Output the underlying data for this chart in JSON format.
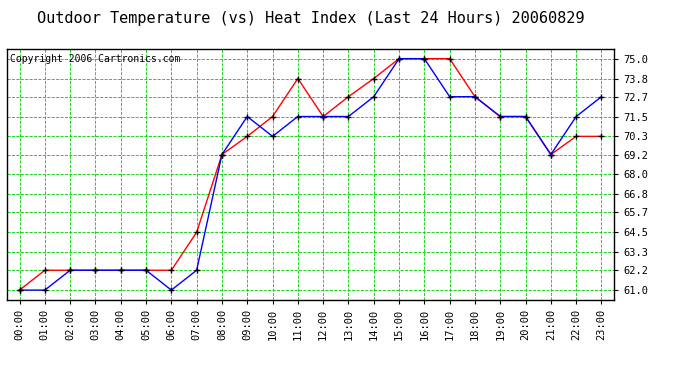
{
  "title": "Outdoor Temperature (vs) Heat Index (Last 24 Hours) 20060829",
  "copyright": "Copyright 2006 Cartronics.com",
  "x_labels": [
    "00:00",
    "01:00",
    "02:00",
    "03:00",
    "04:00",
    "05:00",
    "06:00",
    "07:00",
    "08:00",
    "09:00",
    "10:00",
    "11:00",
    "12:00",
    "13:00",
    "14:00",
    "15:00",
    "16:00",
    "17:00",
    "18:00",
    "19:00",
    "20:00",
    "21:00",
    "22:00",
    "23:00"
  ],
  "y_ticks": [
    61.0,
    62.2,
    63.3,
    64.5,
    65.7,
    66.8,
    68.0,
    69.2,
    70.3,
    71.5,
    72.7,
    73.8,
    75.0
  ],
  "ylim": [
    60.4,
    75.6
  ],
  "red_data": [
    61.0,
    62.2,
    62.2,
    62.2,
    62.2,
    62.2,
    62.2,
    64.5,
    69.2,
    70.3,
    71.5,
    73.8,
    71.5,
    72.7,
    73.8,
    75.0,
    75.0,
    75.0,
    72.7,
    71.5,
    71.5,
    69.2,
    70.3,
    70.3
  ],
  "blue_data": [
    61.0,
    61.0,
    62.2,
    62.2,
    62.2,
    62.2,
    61.0,
    62.2,
    69.2,
    71.5,
    70.3,
    71.5,
    71.5,
    71.5,
    72.7,
    75.0,
    75.0,
    72.7,
    72.7,
    71.5,
    71.5,
    69.2,
    71.5,
    72.7
  ],
  "red_color": "#ff0000",
  "blue_color": "#0000ff",
  "bg_color": "#ffffff",
  "plot_bg_color": "#ffffff",
  "grid_color": "#00cc00",
  "marker": "+",
  "marker_color": "#000000",
  "marker_size": 5,
  "line_width": 1.0,
  "title_fontsize": 11,
  "tick_fontsize": 7.5,
  "copyright_fontsize": 7
}
